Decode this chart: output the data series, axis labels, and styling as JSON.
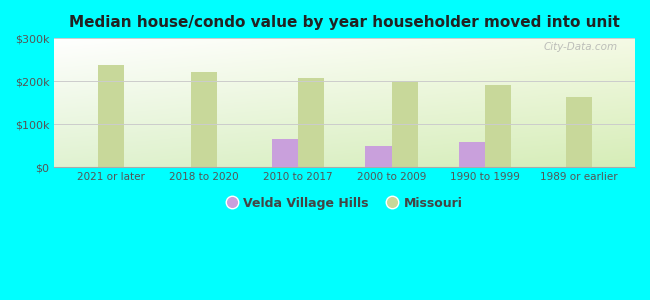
{
  "title": "Median house/condo value by year householder moved into unit",
  "categories": [
    "2021 or later",
    "2018 to 2020",
    "2010 to 2017",
    "2000 to 2009",
    "1990 to 1999",
    "1989 or earlier"
  ],
  "velda_values": [
    null,
    null,
    65000,
    50000,
    58000,
    null
  ],
  "missouri_values": [
    237000,
    222000,
    208000,
    200000,
    190000,
    163000
  ],
  "velda_color": "#c9a0dc",
  "missouri_color": "#c8d89a",
  "background_color": "#00ffff",
  "ylim": [
    0,
    300000
  ],
  "yticks": [
    0,
    100000,
    200000,
    300000
  ],
  "ytick_labels": [
    "$0",
    "$100k",
    "$200k",
    "$300k"
  ],
  "legend_velda": "Velda Village Hills",
  "legend_missouri": "Missouri",
  "bar_width": 0.28,
  "watermark": "City-Data.com"
}
